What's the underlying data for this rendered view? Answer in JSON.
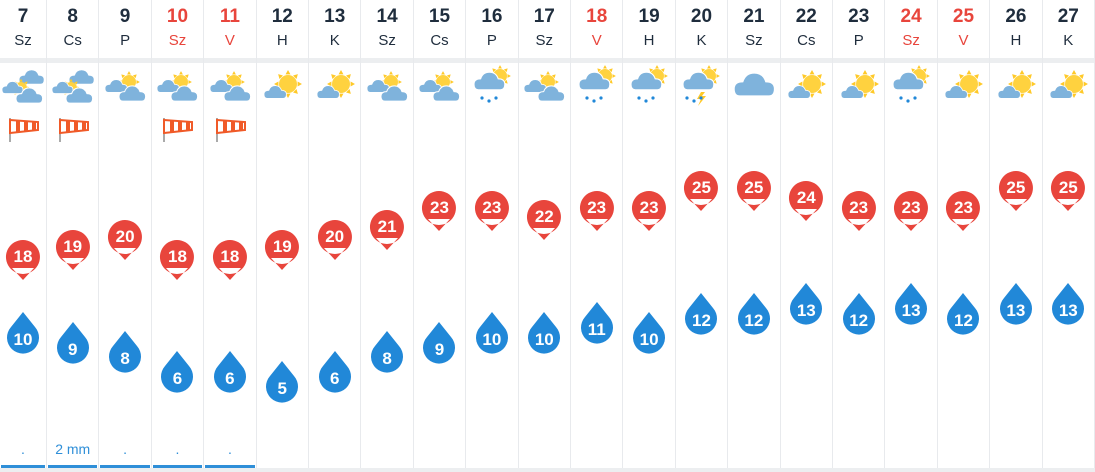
{
  "colors": {
    "high": "#e8453c",
    "low": "#2188d8",
    "weekend": "#e8453c",
    "precip": "#2f8fd8"
  },
  "days": [
    {
      "day": "7",
      "dow": "Sz",
      "weekend": false,
      "icon": "sun-clouds",
      "wind": true,
      "high": 18,
      "low": 10,
      "precip": "."
    },
    {
      "day": "8",
      "dow": "Cs",
      "weekend": false,
      "icon": "sun-clouds",
      "wind": true,
      "high": 19,
      "low": 9,
      "precip": "2 mm"
    },
    {
      "day": "9",
      "dow": "P",
      "weekend": false,
      "icon": "partly-cloudy",
      "wind": false,
      "high": 20,
      "low": 8,
      "precip": "."
    },
    {
      "day": "10",
      "dow": "Sz",
      "weekend": true,
      "icon": "partly-cloudy",
      "wind": true,
      "high": 18,
      "low": 6,
      "precip": "."
    },
    {
      "day": "11",
      "dow": "V",
      "weekend": true,
      "icon": "partly-cloudy",
      "wind": true,
      "high": 18,
      "low": 6,
      "precip": "."
    },
    {
      "day": "12",
      "dow": "H",
      "weekend": false,
      "icon": "mostly-sunny",
      "wind": false,
      "high": 19,
      "low": 5,
      "precip": ""
    },
    {
      "day": "13",
      "dow": "K",
      "weekend": false,
      "icon": "mostly-sunny",
      "wind": false,
      "high": 20,
      "low": 6,
      "precip": ""
    },
    {
      "day": "14",
      "dow": "Sz",
      "weekend": false,
      "icon": "partly-cloudy",
      "wind": false,
      "high": 21,
      "low": 8,
      "precip": ""
    },
    {
      "day": "15",
      "dow": "Cs",
      "weekend": false,
      "icon": "partly-cloudy",
      "wind": false,
      "high": 23,
      "low": 9,
      "precip": ""
    },
    {
      "day": "16",
      "dow": "P",
      "weekend": false,
      "icon": "rain",
      "wind": false,
      "high": 23,
      "low": 10,
      "precip": ""
    },
    {
      "day": "17",
      "dow": "Sz",
      "weekend": false,
      "icon": "partly-cloudy",
      "wind": false,
      "high": 22,
      "low": 10,
      "precip": ""
    },
    {
      "day": "18",
      "dow": "V",
      "weekend": true,
      "icon": "rain",
      "wind": false,
      "high": 23,
      "low": 11,
      "precip": ""
    },
    {
      "day": "19",
      "dow": "H",
      "weekend": false,
      "icon": "rain",
      "wind": false,
      "high": 23,
      "low": 10,
      "precip": ""
    },
    {
      "day": "20",
      "dow": "K",
      "weekend": false,
      "icon": "thunderstorm",
      "wind": false,
      "high": 25,
      "low": 12,
      "precip": ""
    },
    {
      "day": "21",
      "dow": "Sz",
      "weekend": false,
      "icon": "cloudy",
      "wind": false,
      "high": 25,
      "low": 12,
      "precip": ""
    },
    {
      "day": "22",
      "dow": "Cs",
      "weekend": false,
      "icon": "mostly-sunny",
      "wind": false,
      "high": 24,
      "low": 13,
      "precip": ""
    },
    {
      "day": "23",
      "dow": "P",
      "weekend": false,
      "icon": "mostly-sunny",
      "wind": false,
      "high": 23,
      "low": 12,
      "precip": ""
    },
    {
      "day": "24",
      "dow": "Sz",
      "weekend": true,
      "icon": "rain",
      "wind": false,
      "high": 23,
      "low": 13,
      "precip": ""
    },
    {
      "day": "25",
      "dow": "V",
      "weekend": true,
      "icon": "mostly-sunny",
      "wind": false,
      "high": 23,
      "low": 12,
      "precip": ""
    },
    {
      "day": "26",
      "dow": "H",
      "weekend": false,
      "icon": "mostly-sunny",
      "wind": false,
      "high": 25,
      "low": 13,
      "precip": ""
    },
    {
      "day": "27",
      "dow": "K",
      "weekend": false,
      "icon": "mostly-sunny",
      "wind": false,
      "high": 25,
      "low": 13,
      "precip": ""
    }
  ]
}
